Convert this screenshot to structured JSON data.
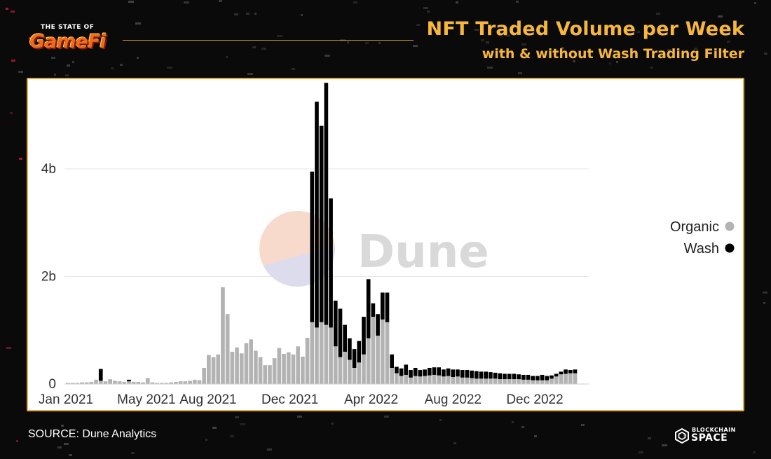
{
  "brand": {
    "small_text": "THE STATE OF",
    "big_text": "GameFi"
  },
  "header": {
    "title": "NFT Traded Volume per Week",
    "subtitle": "with & without Wash Trading Filter"
  },
  "watermark": {
    "text": "Dune"
  },
  "footer": {
    "source": "SOURCE: Dune Analytics",
    "logo_top": "BLOCKCHAIN",
    "logo_bottom": "SPACE"
  },
  "colors": {
    "background": "#0b0a0b",
    "accent": "#f6b73c",
    "panel_border": "#e8a53a",
    "organic": "#b3b3b3",
    "wash": "#000000"
  },
  "chart_data": {
    "type": "bar",
    "stacked": true,
    "x_start": "2021-01-01",
    "x_interval": "week",
    "x_ticks": [
      "Jan 2021",
      "May 2021",
      "Aug 2021",
      "Dec 2021",
      "Apr 2022",
      "Aug 2022",
      "Dec 2022"
    ],
    "y_ticks": [
      "0",
      "2b",
      "4b"
    ],
    "ylim": [
      0,
      5700000000
    ],
    "grid": true,
    "legend_position": "right",
    "series": [
      {
        "name": "Organic",
        "color": "#b3b3b3",
        "values": [
          20000000,
          20000000,
          20000000,
          30000000,
          30000000,
          40000000,
          80000000,
          60000000,
          50000000,
          90000000,
          60000000,
          50000000,
          40000000,
          50000000,
          40000000,
          40000000,
          30000000,
          110000000,
          30000000,
          20000000,
          20000000,
          20000000,
          30000000,
          40000000,
          50000000,
          50000000,
          60000000,
          80000000,
          70000000,
          300000000,
          540000000,
          500000000,
          550000000,
          1800000000,
          1300000000,
          600000000,
          680000000,
          570000000,
          760000000,
          830000000,
          620000000,
          500000000,
          350000000,
          350000000,
          480000000,
          670000000,
          560000000,
          590000000,
          550000000,
          700000000,
          510000000,
          860000000,
          1150000000,
          1050000000,
          1150000000,
          1100000000,
          1050000000,
          700000000,
          500000000,
          600000000,
          450000000,
          300000000,
          400000000,
          550000000,
          850000000,
          1250000000,
          900000000,
          1200000000,
          1150000000,
          300000000,
          200000000,
          150000000,
          170000000,
          120000000,
          150000000,
          140000000,
          150000000,
          160000000,
          170000000,
          160000000,
          140000000,
          150000000,
          130000000,
          140000000,
          120000000,
          120000000,
          110000000,
          100000000,
          100000000,
          100000000,
          100000000,
          100000000,
          90000000,
          90000000,
          90000000,
          90000000,
          90000000,
          80000000,
          80000000,
          70000000,
          70000000,
          70000000,
          70000000,
          100000000,
          140000000,
          180000000,
          190000000,
          200000000,
          200000000
        ]
      },
      {
        "name": "Wash",
        "color": "#000000",
        "values": [
          0,
          0,
          0,
          0,
          0,
          0,
          0,
          220000000,
          0,
          0,
          0,
          0,
          0,
          30000000,
          0,
          0,
          0,
          0,
          0,
          0,
          0,
          0,
          0,
          0,
          0,
          0,
          0,
          0,
          0,
          0,
          0,
          0,
          0,
          0,
          0,
          0,
          0,
          0,
          0,
          0,
          0,
          0,
          0,
          0,
          0,
          0,
          0,
          0,
          0,
          0,
          0,
          0,
          2800000000,
          4200000000,
          3650000000,
          4500000000,
          2400000000,
          850000000,
          900000000,
          500000000,
          400000000,
          350000000,
          400000000,
          700000000,
          1100000000,
          250000000,
          400000000,
          500000000,
          550000000,
          250000000,
          120000000,
          140000000,
          190000000,
          140000000,
          150000000,
          120000000,
          120000000,
          140000000,
          140000000,
          150000000,
          130000000,
          140000000,
          140000000,
          130000000,
          140000000,
          140000000,
          140000000,
          140000000,
          130000000,
          130000000,
          120000000,
          110000000,
          110000000,
          100000000,
          100000000,
          100000000,
          90000000,
          90000000,
          90000000,
          80000000,
          80000000,
          100000000,
          80000000,
          60000000,
          50000000,
          50000000,
          80000000,
          60000000,
          70000000
        ]
      }
    ]
  }
}
